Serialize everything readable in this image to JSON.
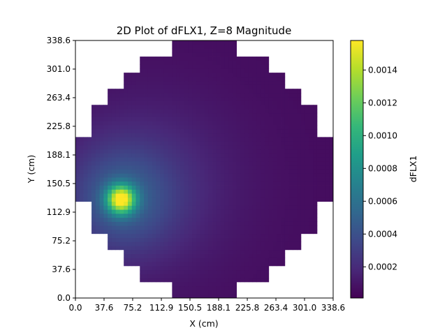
{
  "chart_data": {
    "type": "heatmap",
    "title": "2D Plot of dFLX1, Z=8 Magnitude",
    "xlabel": "X (cm)",
    "ylabel": "Y (cm)",
    "colorbar_label": "dFLX1",
    "colormap": "viridis",
    "xlim": [
      0.0,
      338.6
    ],
    "ylim": [
      0.0,
      338.6
    ],
    "x_ticks": [
      "0.0",
      "37.6",
      "75.2",
      "112.9",
      "150.5",
      "188.1",
      "225.8",
      "263.4",
      "301.0",
      "338.6"
    ],
    "y_ticks": [
      "0.0",
      "37.6",
      "75.2",
      "112.9",
      "150.5",
      "188.1",
      "225.8",
      "263.4",
      "301.0",
      "338.6"
    ],
    "colorbar_range": [
      1e-05,
      0.00158
    ],
    "colorbar_ticks": [
      "0.0002",
      "0.0004",
      "0.0006",
      "0.0008",
      "0.0010",
      "0.0012",
      "0.0014"
    ],
    "grid_size": 16,
    "region_row_spans": [
      [
        6,
        9
      ],
      [
        4,
        11
      ],
      [
        3,
        12
      ],
      [
        2,
        13
      ],
      [
        1,
        14
      ],
      [
        1,
        14
      ],
      [
        0,
        15
      ],
      [
        0,
        15
      ],
      [
        0,
        15
      ],
      [
        0,
        15
      ],
      [
        1,
        14
      ],
      [
        1,
        14
      ],
      [
        2,
        13
      ],
      [
        3,
        12
      ],
      [
        4,
        11
      ],
      [
        6,
        9
      ]
    ],
    "peak": {
      "x": 60,
      "y": 130,
      "value": 0.00158
    },
    "background_level": 6e-05
  },
  "colors": {
    "viridis": [
      "#440154",
      "#482878",
      "#3e4989",
      "#31688e",
      "#26828e",
      "#1f9e89",
      "#35b779",
      "#6ece58",
      "#b5de2b",
      "#fde725"
    ]
  }
}
